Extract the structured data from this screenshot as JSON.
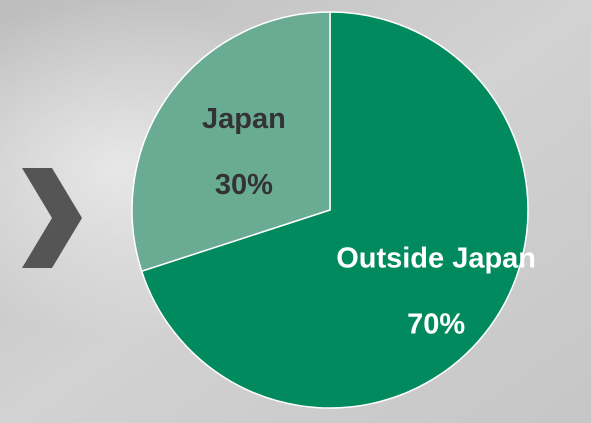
{
  "chart_data": {
    "type": "pie",
    "categories": [
      "Outside Japan",
      "Japan"
    ],
    "values": [
      70,
      30
    ],
    "value_labels": [
      "70%",
      "30%"
    ],
    "colors": [
      "#008a5e",
      "#6aab93"
    ],
    "label_colors": [
      "#ffffff",
      "#333333"
    ]
  }
}
